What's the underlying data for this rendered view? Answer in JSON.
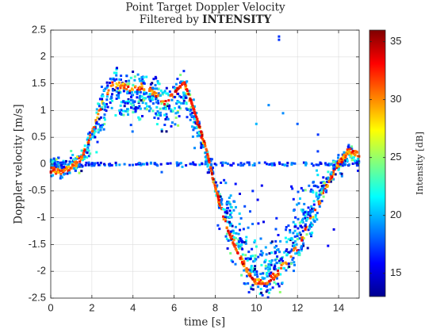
{
  "chart_data": {
    "type": "scatter",
    "title_line1": "Point Target Doppler Velocity",
    "title_line2_prefix": "Filtered by ",
    "title_line2_bold": "INTENSITY",
    "xlabel": "time [s]",
    "ylabel": "Doppler velocity [m/s]",
    "xlim": [
      0,
      15
    ],
    "ylim": [
      -2.5,
      2.5
    ],
    "xticks": [
      0,
      2,
      4,
      6,
      8,
      10,
      12,
      14
    ],
    "yticks": [
      -2.5,
      -2,
      -1.5,
      -1,
      -0.5,
      0,
      0.5,
      1,
      1.5,
      2,
      2.5
    ],
    "grid": true,
    "colorbar": {
      "label": "Intensity [dB]",
      "ticks": [
        15,
        20,
        25,
        30,
        35
      ],
      "range": [
        13,
        36
      ],
      "colormap": "jet"
    },
    "main_trend": {
      "x": [
        0,
        0.5,
        1.0,
        1.5,
        2.0,
        2.5,
        3.0,
        3.5,
        4.0,
        4.5,
        5.0,
        5.5,
        6.0,
        6.5,
        7.0,
        7.5,
        8.0,
        8.5,
        9.0,
        9.5,
        10.0,
        10.5,
        11.0,
        11.5,
        12.0,
        12.5,
        13.0,
        13.5,
        14.0,
        14.5,
        15.0
      ],
      "y": [
        -0.1,
        -0.15,
        -0.05,
        0.1,
        0.6,
        1.15,
        1.5,
        1.45,
        1.4,
        1.45,
        1.35,
        1.15,
        1.3,
        1.5,
        0.95,
        0.35,
        -0.45,
        -1.1,
        -1.55,
        -1.95,
        -2.2,
        -2.2,
        -2.05,
        -1.8,
        -1.55,
        -1.15,
        -0.75,
        -0.35,
        0.0,
        0.25,
        0.15
      ]
    },
    "outliers": [
      {
        "x": 11.1,
        "y": 2.38,
        "intensity": 17
      },
      {
        "x": 11.1,
        "y": 2.32,
        "intensity": 17
      },
      {
        "x": 10.6,
        "y": 1.1,
        "intensity": 19
      },
      {
        "x": 11.3,
        "y": 0.95,
        "intensity": 19
      },
      {
        "x": 10.0,
        "y": 0.75,
        "intensity": 20
      },
      {
        "x": 13.0,
        "y": 0.55,
        "intensity": 17
      },
      {
        "x": 12.0,
        "y": 0.75,
        "intensity": 18
      },
      {
        "x": 7.0,
        "y": 0.3,
        "intensity": 19
      },
      {
        "x": 6.4,
        "y": -0.05,
        "intensity": 20
      },
      {
        "x": 5.4,
        "y": -0.15,
        "intensity": 18
      }
    ]
  }
}
